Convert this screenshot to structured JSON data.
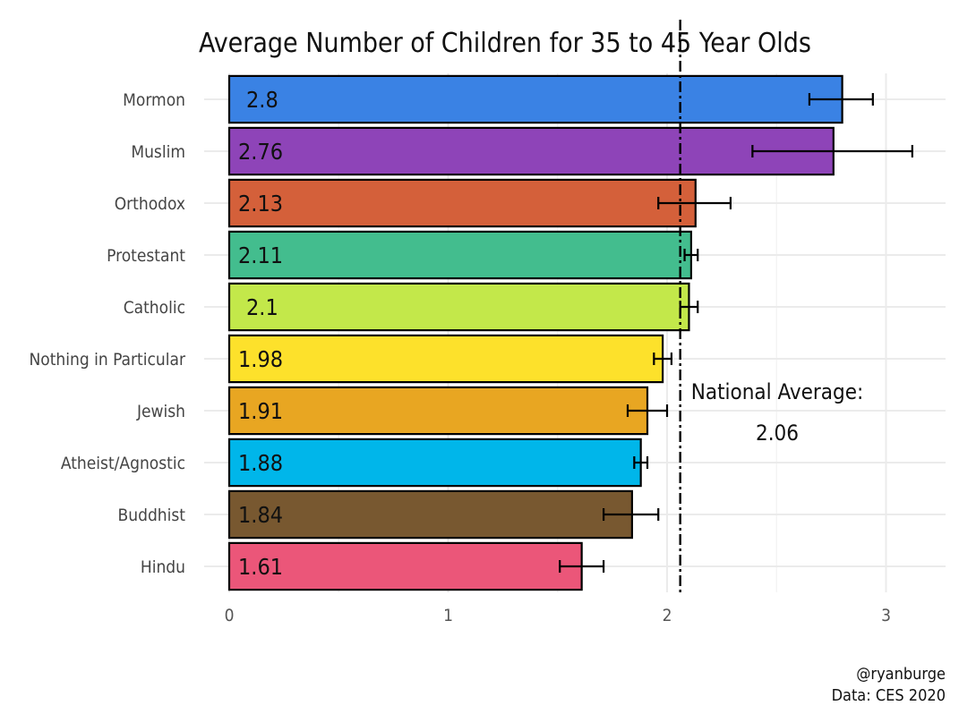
{
  "chart_data": {
    "type": "bar",
    "orientation": "horizontal",
    "title": "Average Number of Children for 35 to 45 Year Olds",
    "xlabel": "",
    "ylabel": "",
    "xlim": [
      0,
      3.25
    ],
    "xticks": [
      0,
      1,
      2,
      3
    ],
    "grid": true,
    "categories": [
      "Mormon",
      "Muslim",
      "Orthodox",
      "Protestant",
      "Catholic",
      "Nothing in Particular",
      "Jewish",
      "Atheist/Agnostic",
      "Buddhist",
      "Hindu"
    ],
    "values": [
      2.8,
      2.76,
      2.13,
      2.11,
      2.1,
      1.98,
      1.91,
      1.88,
      1.84,
      1.61
    ],
    "value_labels": [
      "2.8",
      "2.76",
      "2.13",
      "2.11",
      "2.1",
      "1.98",
      "1.91",
      "1.88",
      "1.84",
      "1.61"
    ],
    "error_low": [
      2.65,
      2.39,
      1.96,
      2.08,
      2.06,
      1.94,
      1.82,
      1.85,
      1.71,
      1.51
    ],
    "error_high": [
      2.94,
      3.12,
      2.29,
      2.14,
      2.14,
      2.02,
      2.0,
      1.91,
      1.96,
      1.71
    ],
    "colors": [
      "#3a82e4",
      "#8e44b8",
      "#d4603a",
      "#43bd8e",
      "#c3e84a",
      "#fde12b",
      "#e8a622",
      "#00b6ea",
      "#785830",
      "#eb5679"
    ],
    "reference_line": {
      "value": 2.06,
      "label_line1": "National Average:",
      "label_line2": "2.06"
    }
  },
  "caption": {
    "line1": "@ryanburge",
    "line2": "Data: CES 2020"
  }
}
